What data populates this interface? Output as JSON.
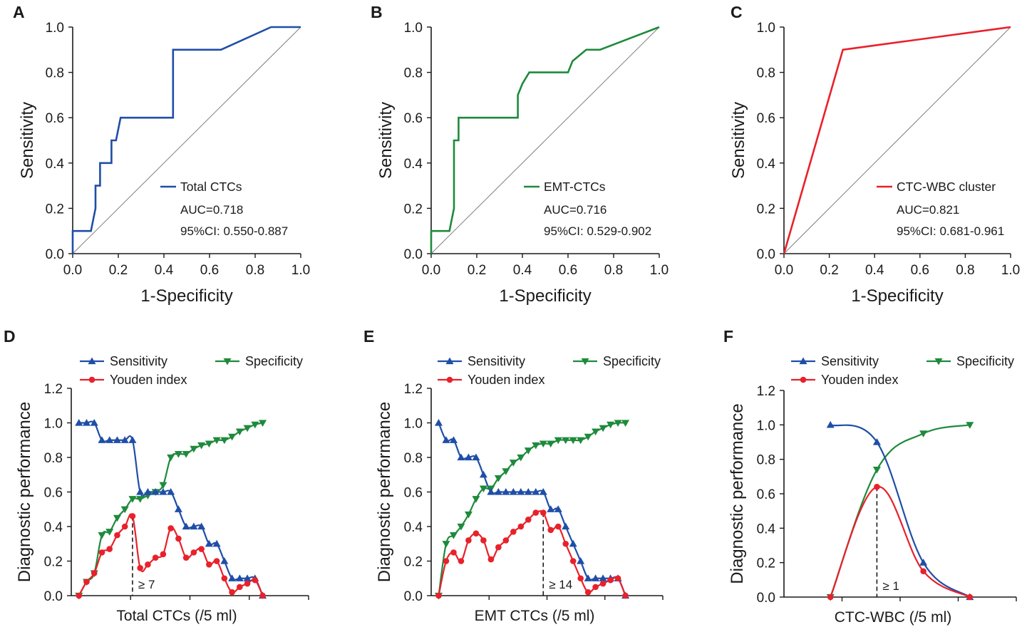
{
  "colors": {
    "blue": "#1f4ea8",
    "green": "#1e8a3c",
    "red": "#e8212b",
    "gray": "#7f7f7f"
  },
  "chart_data": [
    {
      "panel": "A",
      "type": "line",
      "xlabel": "1-Specificity",
      "ylabel": "Sensitivity",
      "xlim": [
        0,
        1
      ],
      "ylim": [
        0,
        1
      ],
      "xticks": [
        "0.0",
        "0.2",
        "0.4",
        "0.6",
        "0.8",
        "1.0"
      ],
      "yticks": [
        "0.0",
        "0.2",
        "0.4",
        "0.6",
        "0.8",
        "1.0"
      ],
      "series": [
        {
          "name": "Total CTCs",
          "color": "#1f4ea8",
          "x": [
            0,
            0,
            0.08,
            0.1,
            0.1,
            0.12,
            0.12,
            0.17,
            0.17,
            0.19,
            0.21,
            0.44,
            0.44,
            0.65,
            0.87,
            1.0
          ],
          "y": [
            0,
            0.1,
            0.1,
            0.2,
            0.3,
            0.3,
            0.4,
            0.4,
            0.5,
            0.5,
            0.6,
            0.6,
            0.9,
            0.9,
            1.0,
            1.0
          ]
        }
      ],
      "reference_line": {
        "x": [
          0,
          1
        ],
        "y": [
          0,
          1
        ]
      },
      "legend": "Total CTCs",
      "auc": "AUC=0.718",
      "ci": "95%CI: 0.550-0.887"
    },
    {
      "panel": "B",
      "type": "line",
      "xlabel": "1-Specificity",
      "ylabel": "Sensitivity",
      "xlim": [
        0,
        1
      ],
      "ylim": [
        0,
        1
      ],
      "xticks": [
        "0.0",
        "0.2",
        "0.4",
        "0.6",
        "0.8",
        "1.0"
      ],
      "yticks": [
        "0.0",
        "0.2",
        "0.4",
        "0.6",
        "0.8",
        "1.0"
      ],
      "series": [
        {
          "name": "EMT-CTCs",
          "color": "#1e8a3c",
          "x": [
            0,
            0,
            0.08,
            0.1,
            0.1,
            0.12,
            0.12,
            0.38,
            0.38,
            0.4,
            0.43,
            0.6,
            0.62,
            0.68,
            0.7,
            0.74,
            1.0
          ],
          "y": [
            0,
            0.1,
            0.1,
            0.2,
            0.5,
            0.5,
            0.6,
            0.6,
            0.7,
            0.75,
            0.8,
            0.8,
            0.85,
            0.9,
            0.9,
            0.9,
            1.0
          ]
        }
      ],
      "reference_line": {
        "x": [
          0,
          1
        ],
        "y": [
          0,
          1
        ]
      },
      "legend": "EMT-CTCs",
      "auc": "AUC=0.716",
      "ci": "95%CI: 0.529-0.902"
    },
    {
      "panel": "C",
      "type": "line",
      "xlabel": "1-Specificity",
      "ylabel": "Sensitivity",
      "xlim": [
        0,
        1
      ],
      "ylim": [
        0,
        1
      ],
      "xticks": [
        "0.0",
        "0.2",
        "0.4",
        "0.6",
        "0.8",
        "1.0"
      ],
      "yticks": [
        "0.0",
        "0.2",
        "0.4",
        "0.6",
        "0.8",
        "1.0"
      ],
      "series": [
        {
          "name": "CTC-WBC cluster",
          "color": "#e8212b",
          "x": [
            0,
            0.26,
            1.0
          ],
          "y": [
            0,
            0.9,
            1.0
          ]
        }
      ],
      "reference_line": {
        "x": [
          0,
          1
        ],
        "y": [
          0,
          1
        ]
      },
      "legend": "CTC-WBC cluster",
      "auc": "AUC=0.821",
      "ci": "95%CI: 0.681-0.961"
    },
    {
      "panel": "D",
      "type": "line",
      "xlabel": "Total CTCs (/5 ml)",
      "ylabel": "Diagnostic performance",
      "x_index_range": [
        -1,
        30
      ],
      "ylim": [
        0,
        1.2
      ],
      "yticks": [
        "0.0",
        "0.2",
        "0.4",
        "0.6",
        "0.8",
        "1.0",
        "1.2"
      ],
      "cutoff": {
        "index": 7,
        "label": "≥ 7",
        "value": 0.46
      },
      "series": [
        {
          "name": "Sensitivity",
          "color": "#1f4ea8",
          "marker": "triangle-up",
          "values": [
            1.0,
            1.0,
            1.0,
            0.9,
            0.9,
            0.9,
            0.9,
            0.9,
            0.6,
            0.6,
            0.6,
            0.6,
            0.6,
            0.5,
            0.4,
            0.4,
            0.4,
            0.3,
            0.3,
            0.2,
            0.1,
            0.1,
            0.1,
            0.1,
            0.0
          ]
        },
        {
          "name": "Specificity",
          "color": "#1e8a3c",
          "marker": "triangle-down",
          "values": [
            0.0,
            0.08,
            0.13,
            0.35,
            0.37,
            0.45,
            0.5,
            0.56,
            0.56,
            0.58,
            0.6,
            0.64,
            0.8,
            0.82,
            0.82,
            0.85,
            0.87,
            0.88,
            0.9,
            0.9,
            0.92,
            0.95,
            0.97,
            0.99,
            1.0
          ]
        },
        {
          "name": "Youden index",
          "color": "#e8212b",
          "marker": "circle",
          "values": [
            0.0,
            0.08,
            0.13,
            0.25,
            0.27,
            0.35,
            0.4,
            0.46,
            0.16,
            0.18,
            0.22,
            0.24,
            0.39,
            0.33,
            0.22,
            0.25,
            0.27,
            0.18,
            0.2,
            0.1,
            0.02,
            0.05,
            0.07,
            0.09,
            0.0
          ]
        }
      ]
    },
    {
      "panel": "E",
      "type": "line",
      "xlabel": "EMT CTCs (/5 ml)",
      "ylabel": "Diagnostic performance",
      "x_index_range": [
        -1,
        30
      ],
      "ylim": [
        0,
        1.2
      ],
      "yticks": [
        "0.0",
        "0.2",
        "0.4",
        "0.6",
        "0.8",
        "1.0",
        "1.2"
      ],
      "cutoff": {
        "index": 14,
        "label": "≥ 14",
        "value": 0.48
      },
      "series": [
        {
          "name": "Sensitivity",
          "color": "#1f4ea8",
          "marker": "triangle-up",
          "values": [
            1.0,
            0.9,
            0.9,
            0.8,
            0.8,
            0.8,
            0.7,
            0.6,
            0.6,
            0.6,
            0.6,
            0.6,
            0.6,
            0.6,
            0.6,
            0.5,
            0.5,
            0.4,
            0.3,
            0.2,
            0.1,
            0.1,
            0.1,
            0.1,
            0.1,
            0.0
          ]
        },
        {
          "name": "Specificity",
          "color": "#1e8a3c",
          "marker": "triangle-down",
          "values": [
            0.0,
            0.3,
            0.35,
            0.4,
            0.47,
            0.56,
            0.62,
            0.62,
            0.68,
            0.72,
            0.77,
            0.8,
            0.84,
            0.87,
            0.88,
            0.88,
            0.9,
            0.9,
            0.9,
            0.9,
            0.92,
            0.95,
            0.97,
            0.99,
            1.0,
            1.0
          ]
        },
        {
          "name": "Youden index",
          "color": "#e8212b",
          "marker": "circle",
          "values": [
            0.0,
            0.2,
            0.25,
            0.2,
            0.32,
            0.36,
            0.32,
            0.21,
            0.28,
            0.32,
            0.37,
            0.4,
            0.44,
            0.48,
            0.48,
            0.38,
            0.4,
            0.3,
            0.2,
            0.1,
            0.02,
            0.05,
            0.07,
            0.09,
            0.1,
            0.0
          ]
        }
      ]
    },
    {
      "panel": "F",
      "type": "line",
      "xlabel": "CTC-WBC (/5 ml)",
      "ylabel": "Diagnostic performance",
      "x_index_range": [
        -1,
        4
      ],
      "ylim": [
        0,
        1.2
      ],
      "yticks": [
        "0.0",
        "0.2",
        "0.4",
        "0.6",
        "0.8",
        "1.0",
        "1.2"
      ],
      "cutoff": {
        "index": 1,
        "label": "≥ 1",
        "value": 0.64
      },
      "series": [
        {
          "name": "Sensitivity",
          "color": "#1f4ea8",
          "marker": "triangle-up",
          "values": [
            1.0,
            0.9,
            0.2,
            0.0
          ]
        },
        {
          "name": "Specificity",
          "color": "#1e8a3c",
          "marker": "triangle-down",
          "values": [
            0.0,
            0.74,
            0.95,
            1.0
          ]
        },
        {
          "name": "Youden index",
          "color": "#e8212b",
          "marker": "circle",
          "values": [
            0.0,
            0.64,
            0.15,
            0.0
          ]
        }
      ]
    }
  ]
}
